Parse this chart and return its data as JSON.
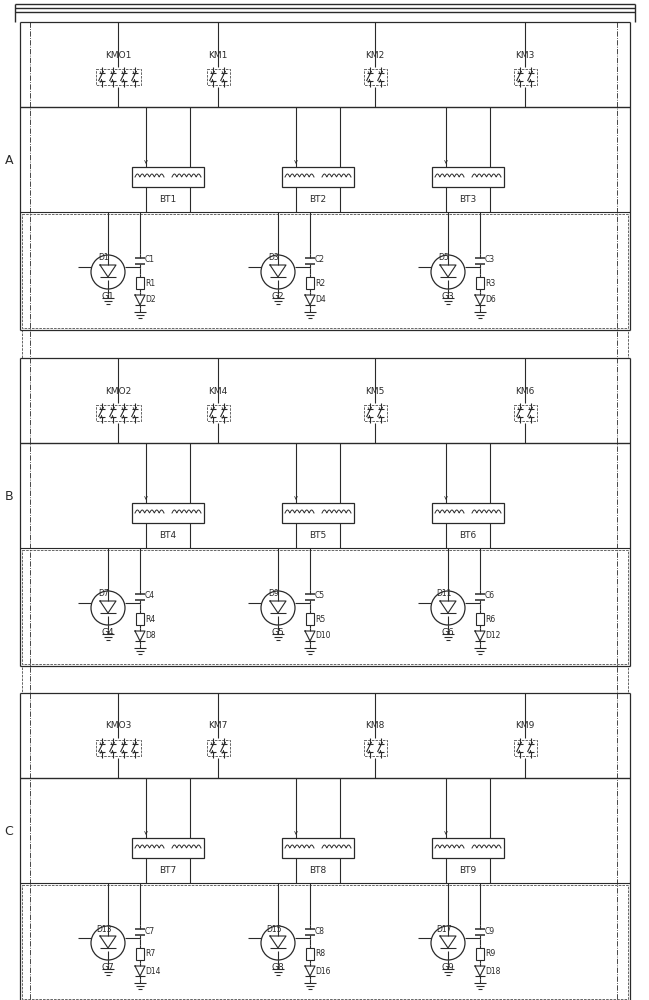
{
  "fig_width": 6.49,
  "fig_height": 10.0,
  "bg_color": "#ffffff",
  "lc": "#2a2a2a",
  "sections": [
    {
      "label": "A",
      "km_names": [
        "KMO1",
        "KM1",
        "KM2",
        "KM3"
      ],
      "km_contacts": [
        4,
        2,
        2,
        2
      ],
      "bt_names": [
        "BT1",
        "BT2",
        "BT3"
      ],
      "g_names": [
        "G1",
        "G2",
        "G3"
      ],
      "d_left": [
        "D1",
        "D3",
        "D5"
      ],
      "d_right": [
        "D2",
        "D4",
        "D6"
      ],
      "c_names": [
        "C1",
        "C2",
        "C3"
      ],
      "r_names": [
        "R1",
        "R2",
        "R3"
      ]
    },
    {
      "label": "B",
      "km_names": [
        "KMO2",
        "KM4",
        "KM5",
        "KM6"
      ],
      "km_contacts": [
        4,
        2,
        2,
        2
      ],
      "bt_names": [
        "BT4",
        "BT5",
        "BT6"
      ],
      "g_names": [
        "G4",
        "G5",
        "G6"
      ],
      "d_left": [
        "D7",
        "D9",
        "D11"
      ],
      "d_right": [
        "D8",
        "D10",
        "D12"
      ],
      "c_names": [
        "C4",
        "C5",
        "C6"
      ],
      "r_names": [
        "R4",
        "R5",
        "R6"
      ]
    },
    {
      "label": "C",
      "km_names": [
        "KMO3",
        "KM7",
        "KM8",
        "KM9"
      ],
      "km_contacts": [
        4,
        2,
        2,
        2
      ],
      "bt_names": [
        "BT7",
        "BT8",
        "BT9"
      ],
      "g_names": [
        "G7",
        "G8",
        "G9"
      ],
      "d_left": [
        "D13",
        "D15",
        "D17"
      ],
      "d_right": [
        "D14",
        "D16",
        "D18"
      ],
      "c_names": [
        "C7",
        "C8",
        "C9"
      ],
      "r_names": [
        "R7",
        "R8",
        "R9"
      ]
    }
  ]
}
